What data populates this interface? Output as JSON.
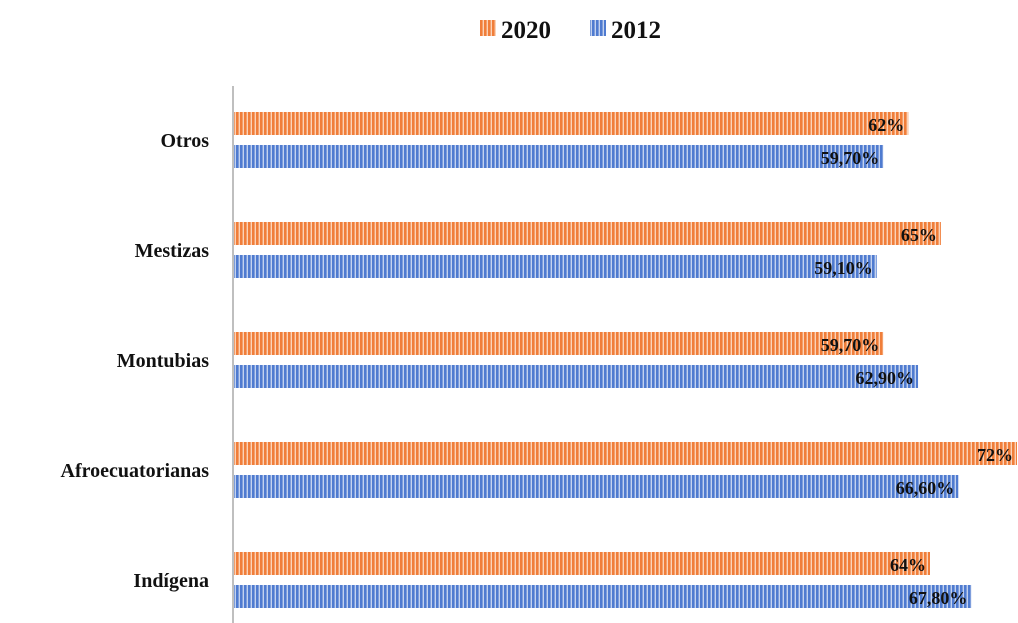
{
  "chart_data": {
    "type": "bar",
    "orientation": "horizontal",
    "categories": [
      "Otros",
      "Mestizas",
      "Montubias",
      "Afroecuatorianas",
      "Indígena"
    ],
    "series": [
      {
        "name": "2020",
        "values": [
          62,
          65,
          59.7,
          72,
          64
        ],
        "labels": [
          "62%",
          "65%",
          "59,70%",
          "72%",
          "64%"
        ],
        "color": "#F07E3A"
      },
      {
        "name": "2012",
        "values": [
          59.7,
          59.1,
          62.9,
          66.6,
          67.8
        ],
        "labels": [
          "59,70%",
          "59,10%",
          "62,90%",
          "66,60%",
          "67,80%"
        ],
        "color": "#4F7BD0"
      }
    ],
    "xlim": [
      0,
      72
    ],
    "legend_position": "top-center",
    "grid": false,
    "bar_pattern": "vertical-stripes"
  }
}
